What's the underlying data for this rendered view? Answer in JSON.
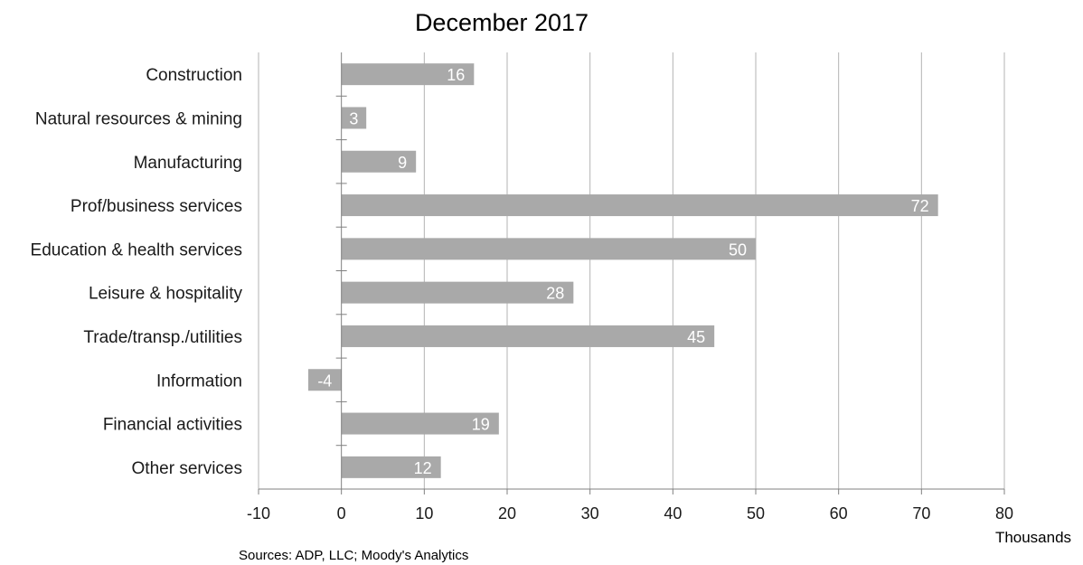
{
  "chart_data": {
    "type": "bar",
    "orientation": "horizontal",
    "title": "December 2017",
    "categories": [
      "Construction",
      "Natural resources & mining",
      "Manufacturing",
      "Prof/business services",
      "Education & health services",
      "Leisure & hospitality",
      "Trade/transp./utilities",
      "Information",
      "Financial activities",
      "Other services"
    ],
    "values": [
      16,
      3,
      9,
      72,
      50,
      28,
      45,
      -4,
      19,
      12
    ],
    "data_labels": [
      "16",
      "3",
      "9",
      "72",
      "50",
      "28",
      "45",
      "-4",
      "19",
      "12"
    ],
    "xlim": [
      -10,
      80
    ],
    "x_ticks": [
      -10,
      0,
      10,
      20,
      30,
      40,
      50,
      60,
      70,
      80
    ],
    "x_tick_labels": [
      "-10",
      "0",
      "10",
      "20",
      "30",
      "40",
      "50",
      "60",
      "70",
      "80"
    ],
    "xlabel": "Thousands",
    "ylabel": "",
    "grid": "vertical",
    "legend": "none",
    "colors": {
      "bar": "#a9a9a9",
      "bar_label": "#ffffff",
      "grid": "#b3b3b3",
      "axis": "#808080",
      "text": "#1a1a1a"
    }
  },
  "footer": {
    "source": "Sources: ADP, LLC; Moody's Analytics"
  }
}
